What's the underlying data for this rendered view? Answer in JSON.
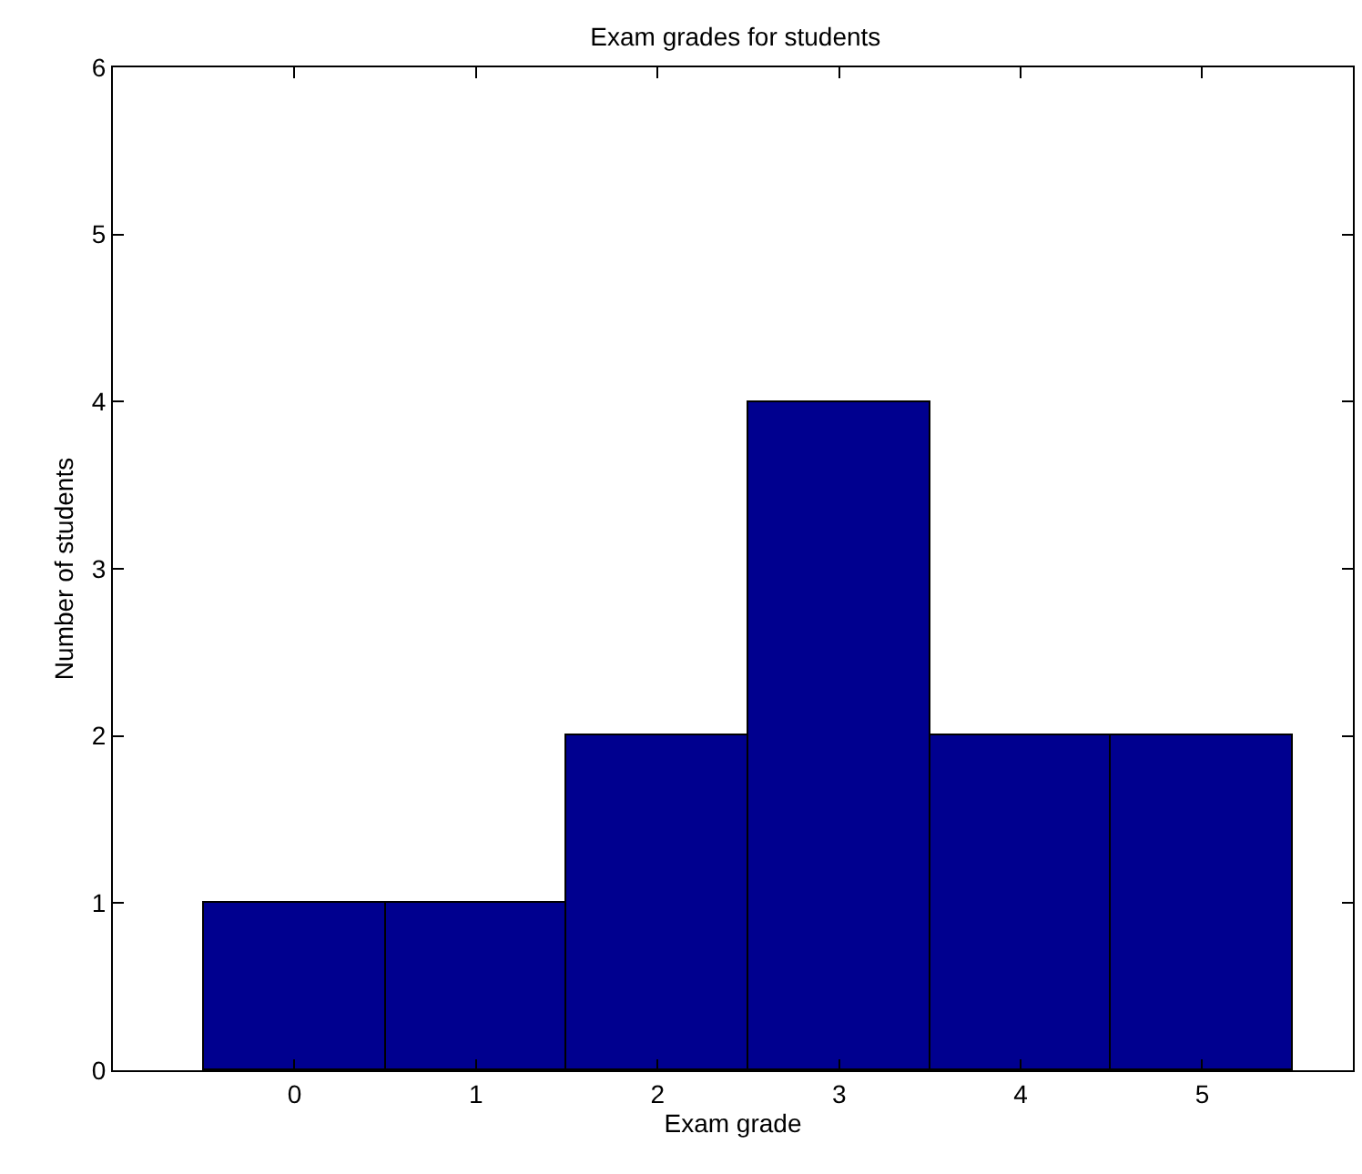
{
  "chart_data": {
    "type": "histogram",
    "title": "Exam grades for students",
    "xlabel": "Exam grade",
    "ylabel": "Number of students",
    "bins": [
      -0.5,
      0.5,
      1.5,
      2.5,
      3.5,
      4.5,
      5.5
    ],
    "values": [
      1,
      1,
      2,
      4,
      2,
      2
    ],
    "color": "#00008f",
    "xlim": [
      -1,
      5.83
    ],
    "xticks": [
      0,
      1,
      2,
      3,
      4,
      5
    ],
    "ylim": [
      0,
      6
    ],
    "yticks": [
      0,
      1,
      2,
      3,
      4,
      5,
      6
    ]
  }
}
